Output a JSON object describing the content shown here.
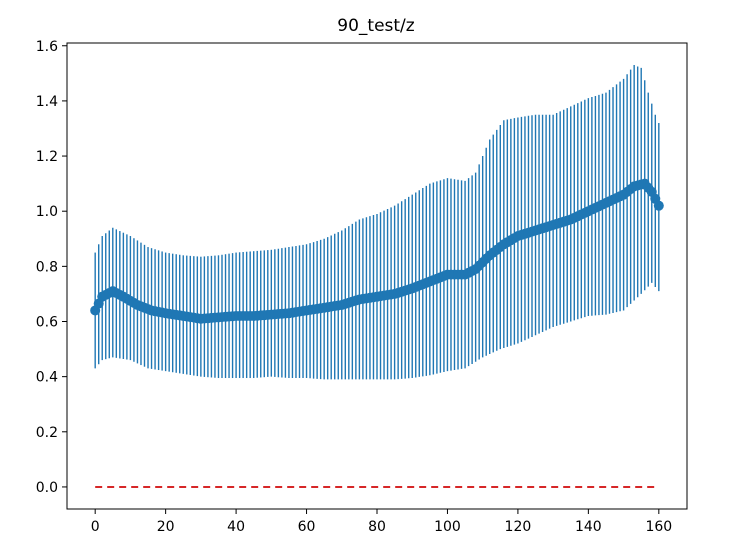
{
  "chart_data": {
    "type": "line",
    "title": "90_test/z",
    "xlabel": "",
    "ylabel": "",
    "xlim": [
      -8,
      168
    ],
    "ylim": [
      -0.08,
      1.61
    ],
    "xticks": [
      "0",
      "20",
      "40",
      "60",
      "80",
      "100",
      "120",
      "140",
      "160"
    ],
    "yticks": [
      "0.0",
      "0.2",
      "0.4",
      "0.6",
      "0.8",
      "1.0",
      "1.2",
      "1.4",
      "1.6"
    ],
    "grid": false,
    "legend": "none",
    "series": [
      {
        "style": "errorbar",
        "color": "#1f77b4",
        "mean_anchors": [
          [
            0,
            0.64
          ],
          [
            2,
            0.69
          ],
          [
            5,
            0.71
          ],
          [
            8,
            0.69
          ],
          [
            12,
            0.66
          ],
          [
            16,
            0.64
          ],
          [
            20,
            0.63
          ],
          [
            25,
            0.62
          ],
          [
            30,
            0.61
          ],
          [
            35,
            0.615
          ],
          [
            40,
            0.62
          ],
          [
            45,
            0.62
          ],
          [
            50,
            0.625
          ],
          [
            55,
            0.63
          ],
          [
            60,
            0.64
          ],
          [
            65,
            0.65
          ],
          [
            70,
            0.66
          ],
          [
            75,
            0.68
          ],
          [
            80,
            0.69
          ],
          [
            85,
            0.7
          ],
          [
            90,
            0.72
          ],
          [
            95,
            0.745
          ],
          [
            100,
            0.77
          ],
          [
            105,
            0.77
          ],
          [
            108,
            0.79
          ],
          [
            112,
            0.84
          ],
          [
            116,
            0.88
          ],
          [
            120,
            0.91
          ],
          [
            125,
            0.93
          ],
          [
            130,
            0.95
          ],
          [
            135,
            0.97
          ],
          [
            140,
            1.0
          ],
          [
            145,
            1.03
          ],
          [
            150,
            1.06
          ],
          [
            153,
            1.09
          ],
          [
            156,
            1.1
          ],
          [
            158,
            1.07
          ],
          [
            160,
            1.02
          ]
        ],
        "upper_anchors": [
          [
            0,
            0.85
          ],
          [
            2,
            0.91
          ],
          [
            5,
            0.94
          ],
          [
            10,
            0.91
          ],
          [
            15,
            0.87
          ],
          [
            20,
            0.85
          ],
          [
            25,
            0.84
          ],
          [
            30,
            0.835
          ],
          [
            35,
            0.84
          ],
          [
            40,
            0.85
          ],
          [
            45,
            0.855
          ],
          [
            50,
            0.86
          ],
          [
            55,
            0.87
          ],
          [
            60,
            0.88
          ],
          [
            65,
            0.9
          ],
          [
            70,
            0.93
          ],
          [
            75,
            0.97
          ],
          [
            80,
            0.99
          ],
          [
            85,
            1.02
          ],
          [
            90,
            1.06
          ],
          [
            95,
            1.1
          ],
          [
            100,
            1.12
          ],
          [
            105,
            1.11
          ],
          [
            108,
            1.14
          ],
          [
            112,
            1.26
          ],
          [
            116,
            1.33
          ],
          [
            120,
            1.34
          ],
          [
            125,
            1.35
          ],
          [
            130,
            1.35
          ],
          [
            135,
            1.38
          ],
          [
            140,
            1.41
          ],
          [
            145,
            1.43
          ],
          [
            150,
            1.48
          ],
          [
            153,
            1.53
          ],
          [
            155,
            1.52
          ],
          [
            157,
            1.43
          ],
          [
            159,
            1.35
          ],
          [
            160,
            1.32
          ]
        ],
        "lower_anchors": [
          [
            0,
            0.43
          ],
          [
            2,
            0.46
          ],
          [
            5,
            0.47
          ],
          [
            10,
            0.46
          ],
          [
            15,
            0.43
          ],
          [
            20,
            0.42
          ],
          [
            25,
            0.41
          ],
          [
            30,
            0.4
          ],
          [
            35,
            0.395
          ],
          [
            40,
            0.395
          ],
          [
            45,
            0.395
          ],
          [
            50,
            0.4
          ],
          [
            55,
            0.395
          ],
          [
            60,
            0.395
          ],
          [
            65,
            0.39
          ],
          [
            70,
            0.39
          ],
          [
            75,
            0.39
          ],
          [
            80,
            0.39
          ],
          [
            85,
            0.39
          ],
          [
            90,
            0.395
          ],
          [
            95,
            0.405
          ],
          [
            100,
            0.42
          ],
          [
            105,
            0.43
          ],
          [
            110,
            0.47
          ],
          [
            115,
            0.5
          ],
          [
            120,
            0.52
          ],
          [
            125,
            0.55
          ],
          [
            130,
            0.58
          ],
          [
            135,
            0.6
          ],
          [
            140,
            0.62
          ],
          [
            145,
            0.625
          ],
          [
            150,
            0.64
          ],
          [
            155,
            0.7
          ],
          [
            158,
            0.74
          ],
          [
            160,
            0.71
          ]
        ]
      },
      {
        "style": "dashed",
        "color": "#d62728",
        "x": [
          0,
          160
        ],
        "y": [
          0,
          0
        ]
      }
    ]
  }
}
